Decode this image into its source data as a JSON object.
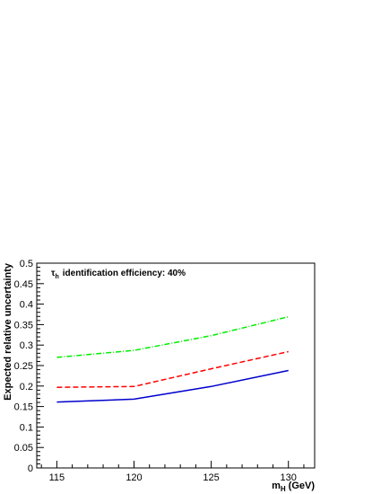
{
  "chart_data": {
    "type": "line",
    "title": "",
    "annotation": {
      "symbol": "τ",
      "subscript": "h",
      "text": "identification efficiency: 40%"
    },
    "xlabel": {
      "main": "m",
      "subscript": "H",
      "unit": "(GeV)"
    },
    "ylabel": "Expected relative uncertainty",
    "xlim": [
      113.7,
      131.7
    ],
    "ylim": [
      0,
      0.5
    ],
    "x_ticks": [
      115,
      120,
      125,
      130
    ],
    "x_tick_labels": [
      "115",
      "120",
      "125",
      "130"
    ],
    "y_ticks": [
      0,
      0.05,
      0.1,
      0.15,
      0.2,
      0.25,
      0.3,
      0.35,
      0.4,
      0.45,
      0.5
    ],
    "y_tick_labels": [
      "0",
      "0.05",
      "0.1",
      "0.15",
      "0.2",
      "0.25",
      "0.3",
      "0.35",
      "0.4",
      "0.45",
      "0.5"
    ],
    "grid": false,
    "legend": "none",
    "x": [
      115,
      120,
      125,
      130
    ],
    "series": [
      {
        "color": "#0000cc",
        "style": "solid",
        "values": [
          0.161,
          0.168,
          0.199,
          0.238
        ]
      },
      {
        "color": "#ff0000",
        "style": "dashed",
        "values": [
          0.197,
          0.199,
          0.242,
          0.284
        ]
      },
      {
        "color": "#00ee00",
        "style": "dashdot",
        "values": [
          0.27,
          0.287,
          0.323,
          0.369
        ]
      }
    ]
  }
}
